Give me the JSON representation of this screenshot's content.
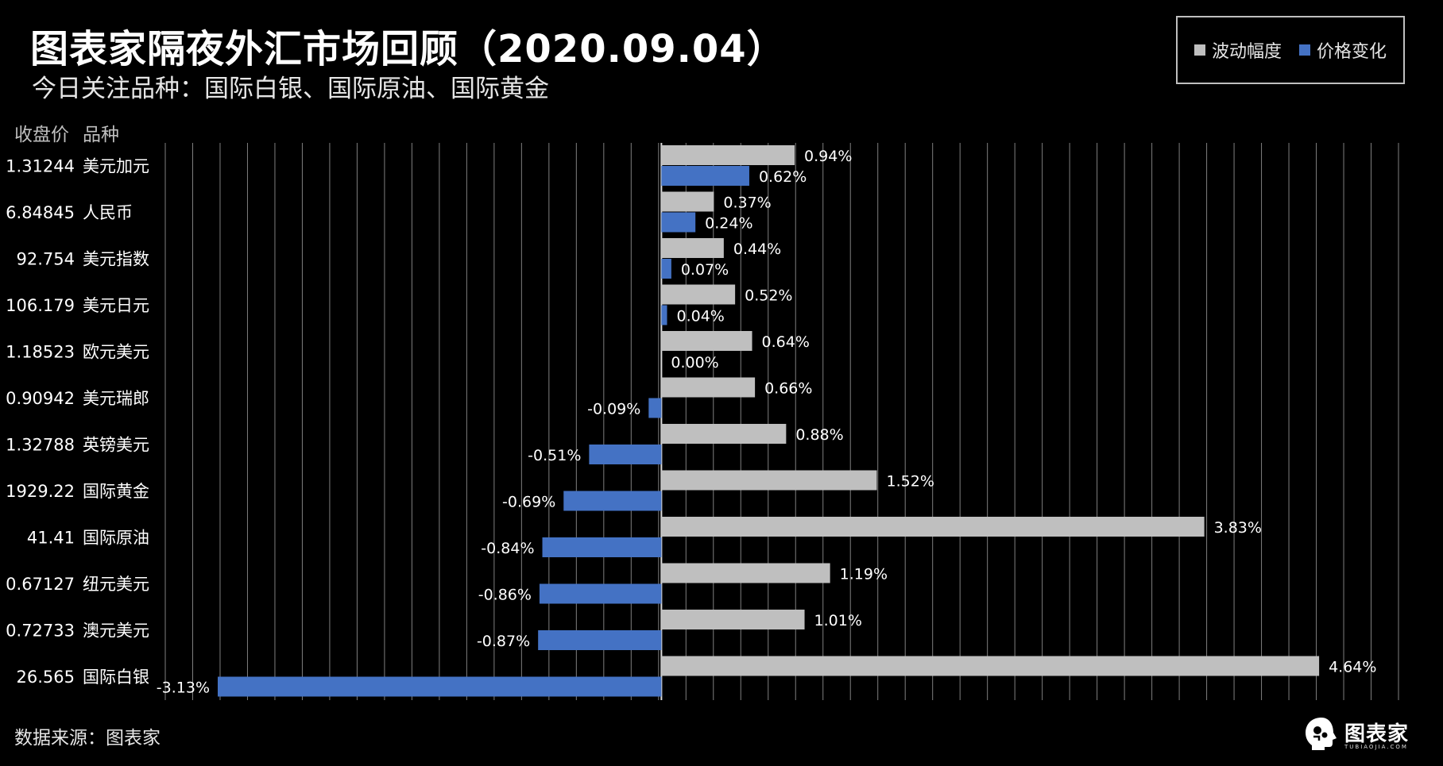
{
  "title": "图表家隔夜外汇市场回顾（2020.09.04）",
  "subtitle": "今日关注品种：国际白银、国际原油、国际黄金",
  "header": {
    "price_col": "收盘价",
    "name_col": "品种"
  },
  "source": "数据来源：图表家",
  "logo": {
    "text": "图表家",
    "sub": "TUBIAOJIA.COM"
  },
  "colors": {
    "range": "#bfbfbf",
    "change": "#4472c4",
    "grid": "#7f7f7f"
  },
  "chart_data": {
    "type": "bar",
    "orientation": "horizontal",
    "xlim": [
      -3.5,
      5.2
    ],
    "value_suffix": "%",
    "categories": [
      "美元加元",
      "人民币",
      "美元指数",
      "美元日元",
      "欧元美元",
      "美元瑞郎",
      "英镑美元",
      "国际黄金",
      "国际原油",
      "纽元美元",
      "澳元美元",
      "国际白银"
    ],
    "close_prices": [
      "1.31244",
      "6.84845",
      "92.754",
      "106.179",
      "1.18523",
      "0.90942",
      "1.32788",
      "1929.22",
      "41.41",
      "0.67127",
      "0.72733",
      "26.565"
    ],
    "series": [
      {
        "name": "波动幅度",
        "values": [
          0.94,
          0.37,
          0.44,
          0.52,
          0.64,
          0.66,
          0.88,
          1.52,
          3.83,
          1.19,
          1.01,
          4.64
        ]
      },
      {
        "name": "价格变化",
        "values": [
          0.62,
          0.24,
          0.07,
          0.04,
          0.0,
          -0.09,
          -0.51,
          -0.69,
          -0.84,
          -0.86,
          -0.87,
          -3.13
        ]
      }
    ],
    "grid": true,
    "legend": "top-right"
  }
}
